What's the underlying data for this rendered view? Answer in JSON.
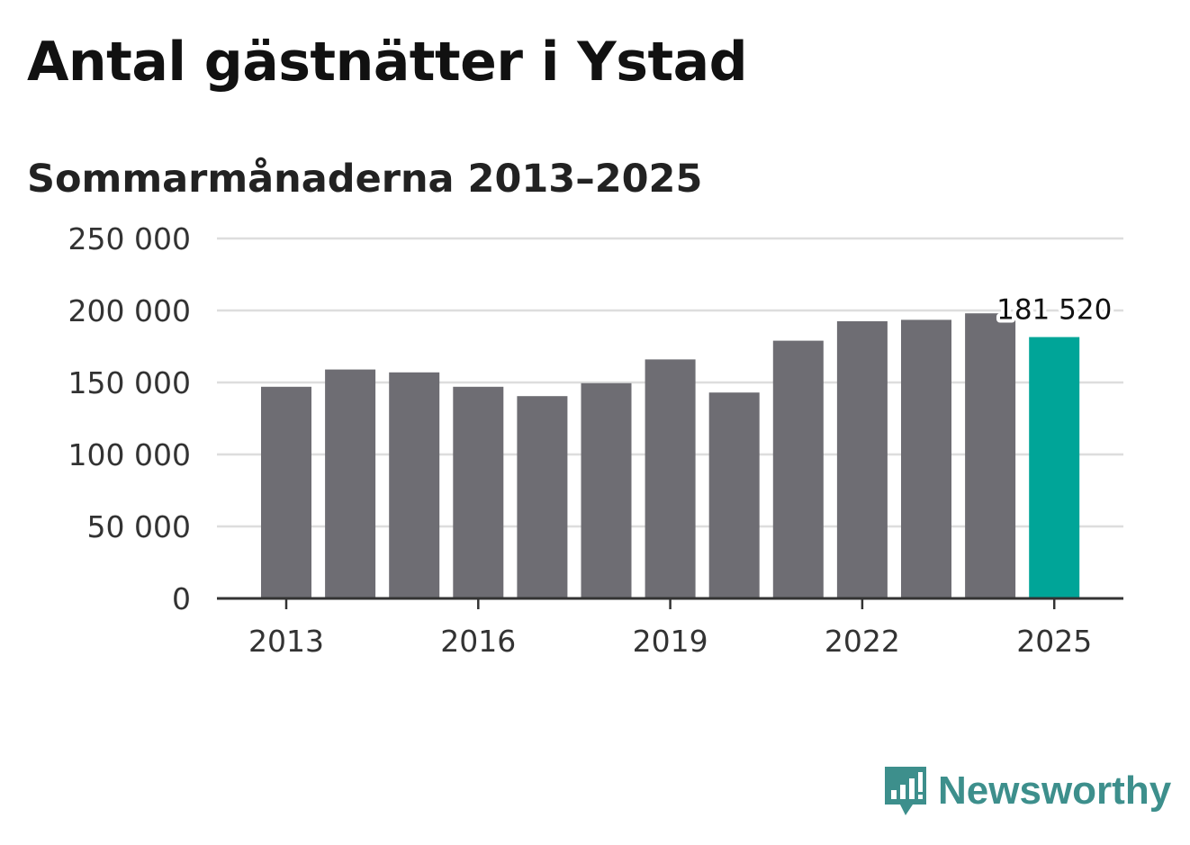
{
  "title": "Antal gästnätter i Ystad",
  "subtitle": "Sommarmånaderna 2013–2025",
  "brand": {
    "name": "Newsworthy",
    "icon": "newsworthy-logo-icon",
    "color": "#3d8f8c"
  },
  "chart_data": {
    "type": "bar",
    "categories": [
      "2013",
      "2014",
      "2015",
      "2016",
      "2017",
      "2018",
      "2019",
      "2020",
      "2021",
      "2022",
      "2023",
      "2024",
      "2025"
    ],
    "values": [
      147000,
      159000,
      157000,
      147000,
      140500,
      149500,
      166000,
      143000,
      179000,
      192500,
      193500,
      198000,
      181520
    ],
    "ylim": [
      0,
      250000
    ],
    "yticks": [
      0,
      50000,
      100000,
      150000,
      200000,
      250000
    ],
    "ytick_labels": [
      "0",
      "50 000",
      "100 000",
      "150 000",
      "200 000",
      "250 000"
    ],
    "xticks": [
      "2013",
      "2016",
      "2019",
      "2022",
      "2025"
    ],
    "highlight_category": "2025",
    "highlight_label": "181 520",
    "grid": true,
    "colors": {
      "bar": "#6e6d73",
      "highlight": "#00a598",
      "grid": "#dddddd",
      "axis": "#333333"
    }
  }
}
